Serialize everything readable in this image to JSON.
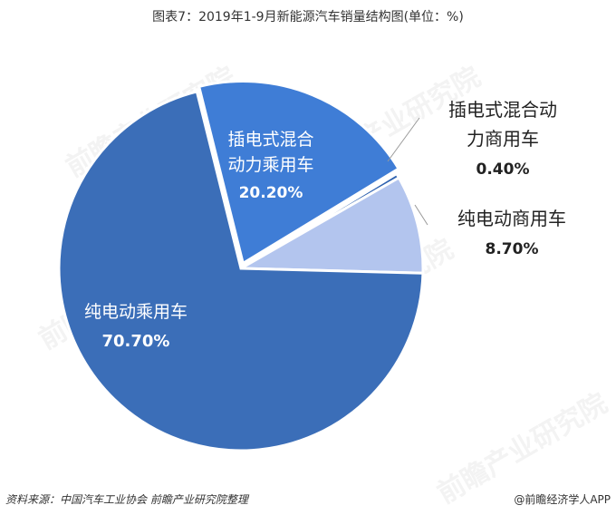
{
  "title": "图表7：2019年1-9月新能源汽车销量结构图(单位：%)",
  "footer": {
    "source": "资料来源：中国汽车工业协会 前瞻产业研究院整理",
    "brand": "@前瞻经济学人APP"
  },
  "watermark_text": "前瞻产业研究院",
  "chart_data": {
    "type": "pie",
    "title": "图表7：2019年1-9月新能源汽车销量结构图(单位：%)",
    "slices": [
      {
        "name": "纯电动乘用车",
        "value": 70.7,
        "label": "70.70%",
        "color": "#3B6EB8"
      },
      {
        "name": "插电式混合动力乘用车",
        "value": 20.2,
        "label": "20.20%",
        "color": "#3F7DD6"
      },
      {
        "name": "插电式混合动力商用车",
        "value": 0.4,
        "label": "0.40%",
        "color": "#2F62B0"
      },
      {
        "name": "纯电动商用车",
        "value": 8.7,
        "label": "8.70%",
        "color": "#B3C5EE"
      }
    ],
    "label_lines": {
      "s0": [
        "纯电动乘用车"
      ],
      "s1": [
        "插电式混合",
        "动力乘用车"
      ],
      "s2": [
        "插电式混合动",
        "力商用车"
      ],
      "s3": [
        "纯电动商用车"
      ]
    }
  }
}
